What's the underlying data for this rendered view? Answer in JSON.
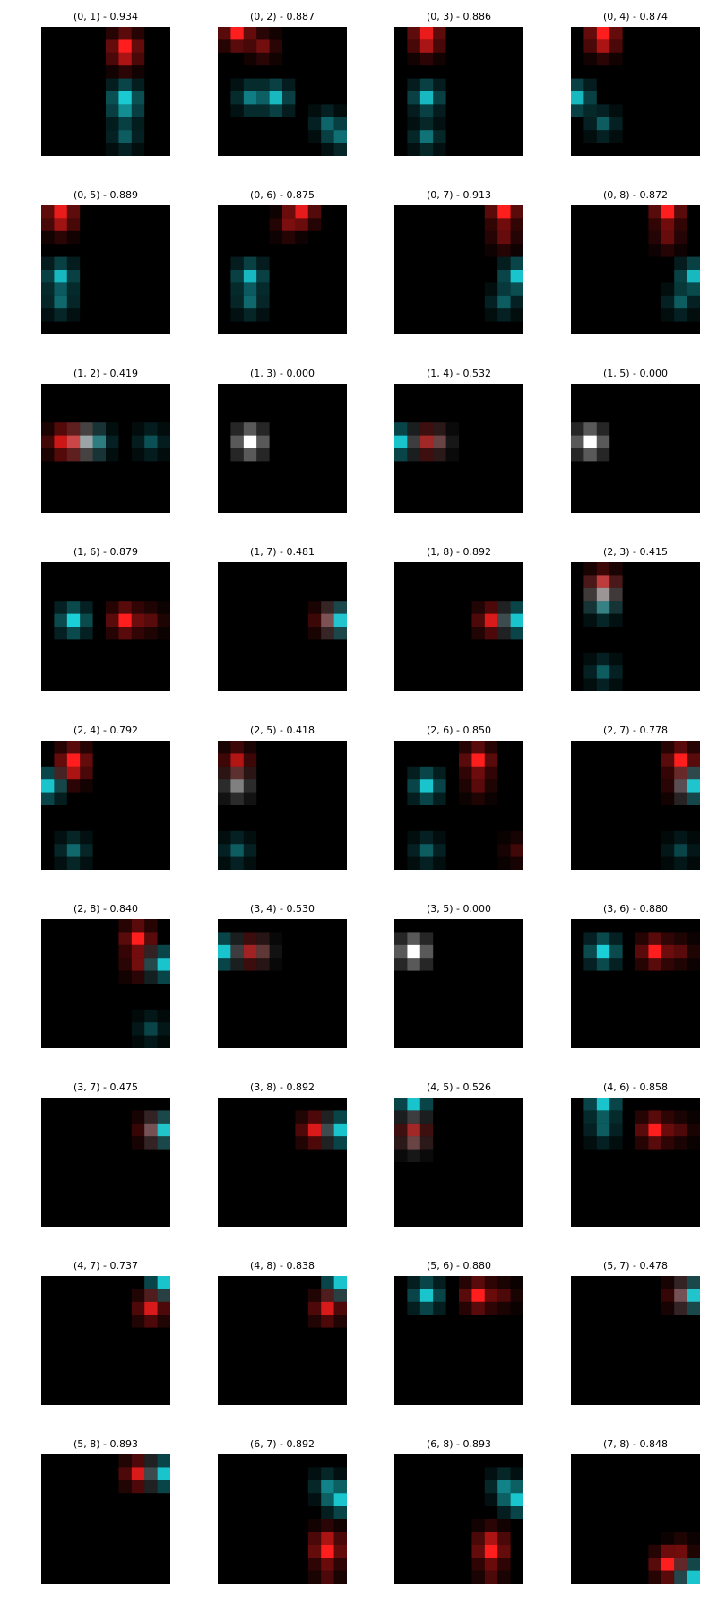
{
  "figure": {
    "panels": [
      {
        "label": "(0, 1) - 0.934",
        "blobs": [
          {
            "col": 6,
            "row": 1,
            "color": "red",
            "strength": 1.0
          },
          {
            "col": 6,
            "row": 2,
            "color": "red",
            "strength": 0.5
          },
          {
            "col": 6,
            "row": 5,
            "color": "cyan",
            "strength": 0.85
          },
          {
            "col": 6,
            "row": 6,
            "color": "cyan",
            "strength": 0.45
          },
          {
            "col": 6,
            "row": 8,
            "color": "cyan",
            "strength": 0.4
          }
        ]
      },
      {
        "label": "(0, 2) - 0.887",
        "blobs": [
          {
            "col": 1,
            "row": 0,
            "color": "red",
            "strength": 1.0
          },
          {
            "col": 3,
            "row": 1,
            "color": "red",
            "strength": 0.45
          },
          {
            "col": 2,
            "row": 5,
            "color": "cyan",
            "strength": 0.55
          },
          {
            "col": 4,
            "row": 5,
            "color": "cyan",
            "strength": 0.8
          },
          {
            "col": 8,
            "row": 7,
            "color": "cyan",
            "strength": 0.4
          },
          {
            "col": 9,
            "row": 8,
            "color": "cyan",
            "strength": 0.45
          }
        ]
      },
      {
        "label": "(0, 3) - 0.886",
        "blobs": [
          {
            "col": 2,
            "row": 0,
            "color": "red",
            "strength": 0.9
          },
          {
            "col": 2,
            "row": 1,
            "color": "red",
            "strength": 0.5
          },
          {
            "col": 2,
            "row": 5,
            "color": "cyan",
            "strength": 0.8
          },
          {
            "col": 2,
            "row": 8,
            "color": "cyan",
            "strength": 0.5
          }
        ]
      },
      {
        "label": "(0, 4) - 0.874",
        "blobs": [
          {
            "col": 2,
            "row": 0,
            "color": "red",
            "strength": 1.0
          },
          {
            "col": 2,
            "row": 1,
            "color": "red",
            "strength": 0.5
          },
          {
            "col": 0,
            "row": 5,
            "color": "cyan",
            "strength": 0.8
          },
          {
            "col": 2,
            "row": 7,
            "color": "cyan",
            "strength": 0.4
          }
        ]
      },
      {
        "label": "(0, 5) - 0.889",
        "blobs": [
          {
            "col": 1,
            "row": 0,
            "color": "red",
            "strength": 0.9
          },
          {
            "col": 1,
            "row": 1,
            "color": "red",
            "strength": 0.45
          },
          {
            "col": 1,
            "row": 5,
            "color": "cyan",
            "strength": 0.8
          },
          {
            "col": 1,
            "row": 7,
            "color": "cyan",
            "strength": 0.45
          }
        ]
      },
      {
        "label": "(0, 6) - 0.875",
        "blobs": [
          {
            "col": 6,
            "row": 0,
            "color": "red",
            "strength": 0.9
          },
          {
            "col": 5,
            "row": 1,
            "color": "red",
            "strength": 0.4
          },
          {
            "col": 2,
            "row": 5,
            "color": "cyan",
            "strength": 0.8
          },
          {
            "col": 2,
            "row": 7,
            "color": "cyan",
            "strength": 0.45
          }
        ]
      },
      {
        "label": "(0, 7) - 0.913",
        "blobs": [
          {
            "col": 8,
            "row": 0,
            "color": "red",
            "strength": 1.0
          },
          {
            "col": 8,
            "row": 2,
            "color": "red",
            "strength": 0.4
          },
          {
            "col": 9,
            "row": 5,
            "color": "cyan",
            "strength": 0.85
          },
          {
            "col": 8,
            "row": 7,
            "color": "cyan",
            "strength": 0.4
          }
        ]
      },
      {
        "label": "(0, 8) - 0.872",
        "blobs": [
          {
            "col": 7,
            "row": 0,
            "color": "red",
            "strength": 1.0
          },
          {
            "col": 7,
            "row": 2,
            "color": "red",
            "strength": 0.4
          },
          {
            "col": 9,
            "row": 5,
            "color": "cyan",
            "strength": 0.8
          },
          {
            "col": 8,
            "row": 7,
            "color": "cyan",
            "strength": 0.4
          }
        ]
      },
      {
        "label": "(1, 2) - 0.419",
        "blobs": [
          {
            "col": 1,
            "row": 4,
            "color": "red",
            "strength": 0.75
          },
          {
            "col": 2,
            "row": 4,
            "color": "red",
            "strength": 0.65
          },
          {
            "col": 3,
            "row": 4,
            "color": "white",
            "strength": 0.6
          },
          {
            "col": 4,
            "row": 4,
            "color": "cyan",
            "strength": 0.4
          },
          {
            "col": 8,
            "row": 4,
            "color": "cyan",
            "strength": 0.35
          }
        ]
      },
      {
        "label": "(1, 3) - 0.000",
        "blobs": [
          {
            "col": 2,
            "row": 4,
            "color": "white",
            "strength": 1.0
          }
        ]
      },
      {
        "label": "(1, 4) - 0.532",
        "blobs": [
          {
            "col": 0,
            "row": 4,
            "color": "cyan",
            "strength": 0.85
          },
          {
            "col": 2,
            "row": 4,
            "color": "red",
            "strength": 0.6
          },
          {
            "col": 3,
            "row": 4,
            "color": "white",
            "strength": 0.25
          }
        ]
      },
      {
        "label": "(1, 5) - 0.000",
        "blobs": [
          {
            "col": 1,
            "row": 4,
            "color": "white",
            "strength": 1.0
          }
        ]
      },
      {
        "label": "(1, 6) - 0.879",
        "blobs": [
          {
            "col": 2,
            "row": 4,
            "color": "cyan",
            "strength": 0.9
          },
          {
            "col": 6,
            "row": 4,
            "color": "red",
            "strength": 1.0
          },
          {
            "col": 8,
            "row": 4,
            "color": "red",
            "strength": 0.35
          }
        ]
      },
      {
        "label": "(1, 7) - 0.481",
        "blobs": [
          {
            "col": 8,
            "row": 4,
            "color": "red",
            "strength": 0.65
          },
          {
            "col": 9,
            "row": 4,
            "color": "cyan",
            "strength": 0.85
          }
        ]
      },
      {
        "label": "(1, 8) - 0.892",
        "blobs": [
          {
            "col": 7,
            "row": 4,
            "color": "red",
            "strength": 0.85
          },
          {
            "col": 9,
            "row": 4,
            "color": "cyan",
            "strength": 0.85
          }
        ]
      },
      {
        "label": "(2, 3) - 0.415",
        "blobs": [
          {
            "col": 2,
            "row": 1,
            "color": "red",
            "strength": 0.7
          },
          {
            "col": 2,
            "row": 3,
            "color": "cyan",
            "strength": 0.45
          },
          {
            "col": 2,
            "row": 2,
            "color": "white",
            "strength": 0.5
          },
          {
            "col": 2,
            "row": 8,
            "color": "cyan",
            "strength": 0.4
          }
        ]
      },
      {
        "label": "(2, 4) - 0.792",
        "blobs": [
          {
            "col": 2,
            "row": 1,
            "color": "red",
            "strength": 1.0
          },
          {
            "col": 2,
            "row": 2,
            "color": "red",
            "strength": 0.5
          },
          {
            "col": 0,
            "row": 3,
            "color": "cyan",
            "strength": 0.85
          },
          {
            "col": 2,
            "row": 8,
            "color": "cyan",
            "strength": 0.45
          }
        ]
      },
      {
        "label": "(2, 5) - 0.418",
        "blobs": [
          {
            "col": 1,
            "row": 1,
            "color": "red",
            "strength": 0.7
          },
          {
            "col": 1,
            "row": 3,
            "color": "white",
            "strength": 0.5
          },
          {
            "col": 1,
            "row": 8,
            "color": "cyan",
            "strength": 0.4
          }
        ]
      },
      {
        "label": "(2, 6) - 0.850",
        "blobs": [
          {
            "col": 6,
            "row": 1,
            "color": "red",
            "strength": 1.0
          },
          {
            "col": 6,
            "row": 3,
            "color": "red",
            "strength": 0.35
          },
          {
            "col": 2,
            "row": 3,
            "color": "cyan",
            "strength": 0.85
          },
          {
            "col": 2,
            "row": 8,
            "color": "cyan",
            "strength": 0.4
          },
          {
            "col": 9,
            "row": 8,
            "color": "red",
            "strength": 0.25
          }
        ]
      },
      {
        "label": "(2, 7) - 0.778",
        "blobs": [
          {
            "col": 8,
            "row": 1,
            "color": "red",
            "strength": 1.0
          },
          {
            "col": 8,
            "row": 3,
            "color": "red",
            "strength": 0.45
          },
          {
            "col": 9,
            "row": 3,
            "color": "cyan",
            "strength": 0.85
          },
          {
            "col": 8,
            "row": 8,
            "color": "cyan",
            "strength": 0.3
          }
        ]
      },
      {
        "label": "(2, 8) - 0.840",
        "blobs": [
          {
            "col": 7,
            "row": 1,
            "color": "red",
            "strength": 1.0
          },
          {
            "col": 7,
            "row": 3,
            "color": "red",
            "strength": 0.45
          },
          {
            "col": 9,
            "row": 3,
            "color": "cyan",
            "strength": 0.85
          },
          {
            "col": 8,
            "row": 8,
            "color": "cyan",
            "strength": 0.3
          }
        ]
      },
      {
        "label": "(3, 4) - 0.530",
        "blobs": [
          {
            "col": 0,
            "row": 2,
            "color": "cyan",
            "strength": 0.85
          },
          {
            "col": 2,
            "row": 2,
            "color": "red",
            "strength": 0.6
          },
          {
            "col": 3,
            "row": 2,
            "color": "white",
            "strength": 0.2
          }
        ]
      },
      {
        "label": "(3, 5) - 0.000",
        "blobs": [
          {
            "col": 1,
            "row": 2,
            "color": "white",
            "strength": 1.0
          }
        ]
      },
      {
        "label": "(3, 6) - 0.880",
        "blobs": [
          {
            "col": 2,
            "row": 2,
            "color": "cyan",
            "strength": 0.9
          },
          {
            "col": 6,
            "row": 2,
            "color": "red",
            "strength": 1.0
          },
          {
            "col": 8,
            "row": 2,
            "color": "red",
            "strength": 0.35
          }
        ]
      },
      {
        "label": "(3, 7) - 0.475",
        "blobs": [
          {
            "col": 8,
            "row": 2,
            "color": "red",
            "strength": 0.6
          },
          {
            "col": 9,
            "row": 2,
            "color": "cyan",
            "strength": 0.85
          }
        ]
      },
      {
        "label": "(3, 8) - 0.892",
        "blobs": [
          {
            "col": 7,
            "row": 2,
            "color": "red",
            "strength": 0.85
          },
          {
            "col": 9,
            "row": 2,
            "color": "cyan",
            "strength": 0.85
          }
        ]
      },
      {
        "label": "(4, 5) - 0.526",
        "blobs": [
          {
            "col": 1,
            "row": 0,
            "color": "cyan",
            "strength": 0.85
          },
          {
            "col": 1,
            "row": 2,
            "color": "red",
            "strength": 0.6
          },
          {
            "col": 1,
            "row": 3,
            "color": "white",
            "strength": 0.25
          }
        ]
      },
      {
        "label": "(4, 6) - 0.858",
        "blobs": [
          {
            "col": 2,
            "row": 0,
            "color": "cyan",
            "strength": 0.85
          },
          {
            "col": 2,
            "row": 2,
            "color": "cyan",
            "strength": 0.4
          },
          {
            "col": 6,
            "row": 2,
            "color": "red",
            "strength": 1.0
          },
          {
            "col": 8,
            "row": 2,
            "color": "red",
            "strength": 0.3
          }
        ]
      },
      {
        "label": "(4, 7) - 0.737",
        "blobs": [
          {
            "col": 9,
            "row": 0,
            "color": "cyan",
            "strength": 0.85
          },
          {
            "col": 8,
            "row": 2,
            "color": "red",
            "strength": 0.85
          }
        ]
      },
      {
        "label": "(4, 8) - 0.838",
        "blobs": [
          {
            "col": 9,
            "row": 0,
            "color": "cyan",
            "strength": 0.85
          },
          {
            "col": 8,
            "row": 2,
            "color": "red",
            "strength": 0.85
          }
        ]
      },
      {
        "label": "(5, 6) - 0.880",
        "blobs": [
          {
            "col": 2,
            "row": 1,
            "color": "cyan",
            "strength": 0.85
          },
          {
            "col": 6,
            "row": 1,
            "color": "red",
            "strength": 1.0
          },
          {
            "col": 8,
            "row": 1,
            "color": "red",
            "strength": 0.3
          }
        ]
      },
      {
        "label": "(5, 7) - 0.478",
        "blobs": [
          {
            "col": 8,
            "row": 1,
            "color": "red",
            "strength": 0.6
          },
          {
            "col": 9,
            "row": 1,
            "color": "cyan",
            "strength": 0.85
          }
        ]
      },
      {
        "label": "(5, 8) - 0.893",
        "blobs": [
          {
            "col": 7,
            "row": 1,
            "color": "red",
            "strength": 0.85
          },
          {
            "col": 9,
            "row": 1,
            "color": "cyan",
            "strength": 0.85
          }
        ]
      },
      {
        "label": "(6, 7) - 0.892",
        "blobs": [
          {
            "col": 8,
            "row": 2,
            "color": "cyan",
            "strength": 0.5
          },
          {
            "col": 9,
            "row": 3,
            "color": "cyan",
            "strength": 0.85
          },
          {
            "col": 8,
            "row": 6,
            "color": "red",
            "strength": 0.5
          },
          {
            "col": 8,
            "row": 7,
            "color": "red",
            "strength": 1.0
          },
          {
            "col": 8,
            "row": 9,
            "color": "red",
            "strength": 0.3
          }
        ]
      },
      {
        "label": "(6, 8) - 0.893",
        "blobs": [
          {
            "col": 8,
            "row": 2,
            "color": "cyan",
            "strength": 0.5
          },
          {
            "col": 9,
            "row": 3,
            "color": "cyan",
            "strength": 0.85
          },
          {
            "col": 7,
            "row": 6,
            "color": "red",
            "strength": 0.5
          },
          {
            "col": 7,
            "row": 7,
            "color": "red",
            "strength": 1.0
          },
          {
            "col": 7,
            "row": 9,
            "color": "red",
            "strength": 0.3
          }
        ]
      },
      {
        "label": "(7, 8) - 0.848",
        "blobs": [
          {
            "col": 7,
            "row": 8,
            "color": "red",
            "strength": 1.0
          },
          {
            "col": 8,
            "row": 7,
            "color": "red",
            "strength": 0.35
          },
          {
            "col": 9,
            "row": 9,
            "color": "cyan",
            "strength": 0.85
          }
        ]
      }
    ],
    "colors": {
      "background": "#000000",
      "red": "#ff1e1e",
      "cyan": "#1ee6f0",
      "white": "#ffffff"
    }
  }
}
